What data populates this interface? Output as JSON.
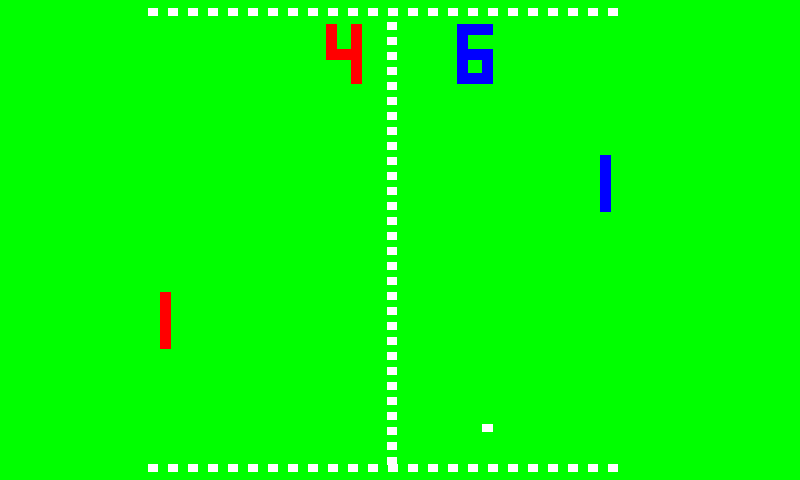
{
  "game": "pong",
  "colors": {
    "background": "#00ff00",
    "lines": "#ffffff",
    "ball": "#ffffff"
  },
  "players": {
    "left": {
      "score": "4",
      "color": "#ff0000"
    },
    "right": {
      "score": "6",
      "color": "#0000ff"
    }
  }
}
